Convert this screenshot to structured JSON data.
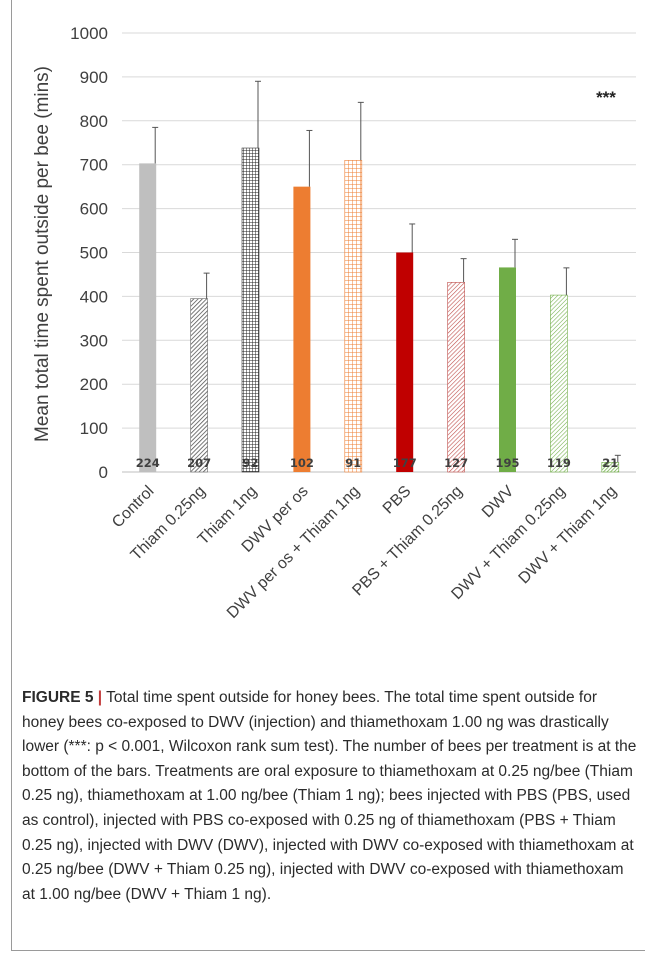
{
  "chart_data": {
    "type": "bar",
    "ylabel": "Mean total time spent outside per bee (mins)",
    "ylim": [
      0,
      1000
    ],
    "yticks": [
      0,
      100,
      200,
      300,
      400,
      500,
      600,
      700,
      800,
      900,
      1000
    ],
    "grid": true,
    "annotation": "***",
    "categories": [
      "Control",
      "Thiam 0.25ng",
      "Thiam 1ng",
      "DWV per os",
      "DWV per os + Thiam 1ng",
      "PBS",
      "PBS + Thiam 0.25ng",
      "DWV",
      "DWV + Thiam 0.25ng",
      "DWV + Thiam 1ng"
    ],
    "values": [
      703,
      395,
      738,
      650,
      710,
      500,
      432,
      466,
      403,
      22
    ],
    "error_upper": [
      785,
      453,
      890,
      778,
      842,
      565,
      486,
      530,
      465,
      38
    ],
    "n_per_bar": [
      "224",
      "207",
      "92",
      "102",
      "91",
      "177",
      "127",
      "195",
      "119",
      "21"
    ],
    "bar_colors": [
      "#bfbfbf",
      "#6a6a6a",
      "#333333",
      "#ed7d31",
      "#ed7d31",
      "#c00000",
      "#c0504d",
      "#70ad47",
      "#70ad47",
      "#70ad47"
    ],
    "bar_fills": [
      "solid",
      "diag-dense",
      "grid-dense",
      "solid",
      "grid-light",
      "solid",
      "diag-light",
      "solid",
      "diag-light",
      "diag-dense"
    ]
  },
  "caption": {
    "label": "FIGURE 5",
    "separator": "|",
    "text": " Total time spent outside for honey bees. The total time spent outside for honey bees co-exposed to DWV (injection) and thiamethoxam 1.00 ng was drastically lower (***: p < 0.001, Wilcoxon rank sum test). The number of bees per treatment is at the bottom of the bars. Treatments are oral exposure to thiamethoxam at 0.25 ng/bee (Thiam 0.25 ng), thiamethoxam at 1.00 ng/bee (Thiam 1 ng); bees injected with PBS (PBS, used as control), injected with PBS co-exposed with 0.25 ng of thiamethoxam (PBS + Thiam 0.25 ng), injected with DWV (DWV), injected with DWV co-exposed with thiamethoxam at 0.25 ng/bee (DWV + Thiam 0.25 ng), injected with DWV co-exposed with thiamethoxam at 1.00 ng/bee (DWV + Thiam 1 ng)."
  }
}
